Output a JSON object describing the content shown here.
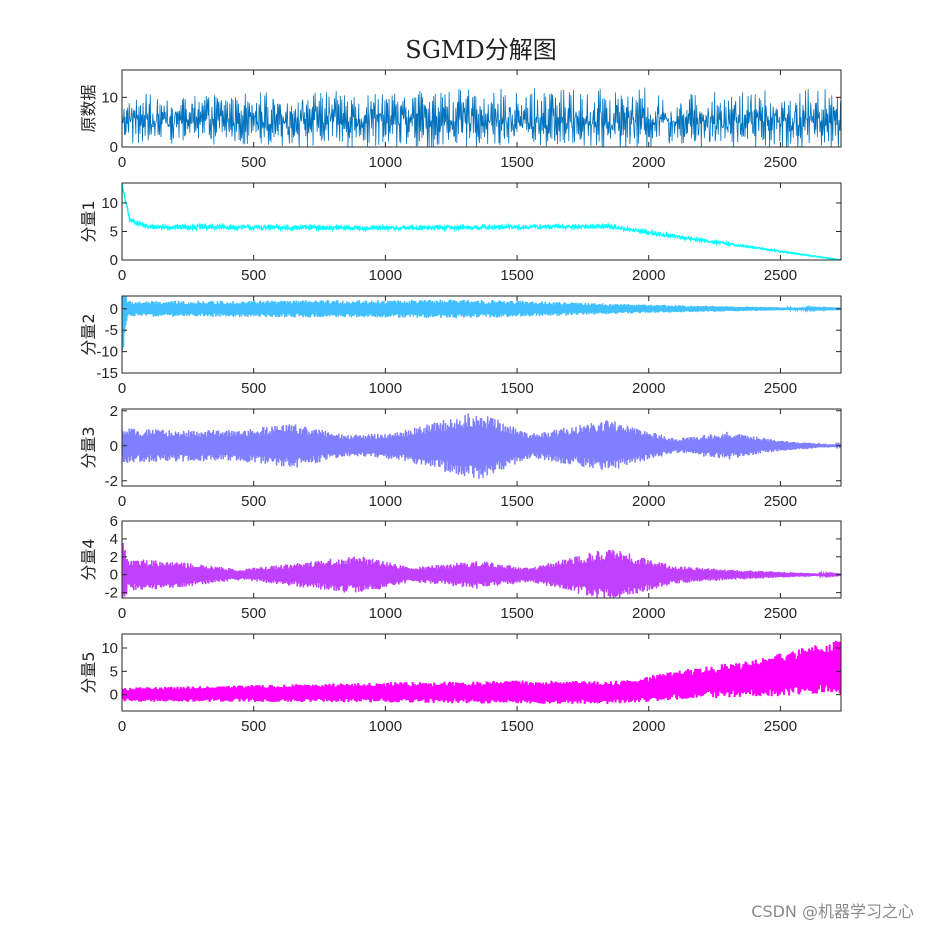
{
  "chart_data": {
    "type": "line",
    "title": "SGMD分解图",
    "xlim": [
      0,
      2730
    ],
    "xticks": [
      0,
      500,
      1000,
      1500,
      2000,
      2500
    ],
    "panels": [
      {
        "ylabel": "原数据",
        "color": "#0072BD",
        "ylim": [
          0,
          15.5
        ],
        "yticks": [
          0,
          10
        ],
        "line_width": 0.8,
        "shape": "oscillation",
        "center": [
          [
            0,
            5.5
          ],
          [
            2730,
            5.5
          ]
        ],
        "amplitude": [
          [
            0,
            4
          ],
          [
            1350,
            5
          ],
          [
            2730,
            5
          ]
        ]
      },
      {
        "ylabel": "分量1",
        "color": "#00FFFF",
        "ylim": [
          0,
          13.5
        ],
        "yticks": [
          0,
          5,
          10
        ],
        "line_width": 1.5,
        "shape": "trend",
        "center": [
          [
            0,
            13
          ],
          [
            30,
            7
          ],
          [
            100,
            5.8
          ],
          [
            1000,
            5.6
          ],
          [
            1850,
            5.9
          ],
          [
            2000,
            4.8
          ],
          [
            2730,
            0
          ]
        ],
        "amplitude": [
          [
            0,
            0.4
          ],
          [
            2000,
            0.3
          ],
          [
            2730,
            0.05
          ]
        ]
      },
      {
        "ylabel": "分量2",
        "color": "#40C0FF",
        "ylim": [
          -15,
          3
        ],
        "yticks": [
          -15,
          -10,
          -5,
          0
        ],
        "line_width": 1.5,
        "shape": "oscillation",
        "center": [
          [
            0,
            0
          ],
          [
            2730,
            0
          ]
        ],
        "amplitude": [
          [
            0,
            14
          ],
          [
            20,
            1.8
          ],
          [
            1350,
            2.2
          ],
          [
            2000,
            1
          ],
          [
            2730,
            0.1
          ]
        ]
      },
      {
        "ylabel": "分量3",
        "color": "#8080FF",
        "ylim": [
          -2.3,
          2.1
        ],
        "yticks": [
          -2,
          0,
          2
        ],
        "line_width": 1.5,
        "shape": "oscillation",
        "center": [
          [
            0,
            0
          ],
          [
            2730,
            0
          ]
        ],
        "amplitude": [
          [
            0,
            1
          ],
          [
            200,
            0.9
          ],
          [
            450,
            0.9
          ],
          [
            650,
            1.3
          ],
          [
            850,
            0.6
          ],
          [
            1050,
            0.8
          ],
          [
            1350,
            2
          ],
          [
            1550,
            0.7
          ],
          [
            1850,
            1.5
          ],
          [
            2100,
            0.4
          ],
          [
            2300,
            0.8
          ],
          [
            2500,
            0.3
          ],
          [
            2730,
            0.05
          ]
        ]
      },
      {
        "ylabel": "分量4",
        "color": "#BF40FF",
        "ylim": [
          -2.6,
          6
        ],
        "yticks": [
          -2,
          0,
          2,
          4,
          6
        ],
        "line_width": 1.5,
        "shape": "oscillation",
        "center": [
          [
            0,
            0
          ],
          [
            2730,
            0
          ]
        ],
        "amplitude": [
          [
            0,
            5
          ],
          [
            20,
            1.8
          ],
          [
            200,
            1.5
          ],
          [
            450,
            0.6
          ],
          [
            700,
            1.5
          ],
          [
            900,
            2.2
          ],
          [
            1100,
            0.8
          ],
          [
            1350,
            1.6
          ],
          [
            1550,
            0.8
          ],
          [
            1850,
            3
          ],
          [
            2100,
            1
          ],
          [
            2300,
            0.6
          ],
          [
            2730,
            0.05
          ]
        ]
      },
      {
        "ylabel": "分量5",
        "color": "#FF00FF",
        "ylim": [
          -3.5,
          13
        ],
        "yticks": [
          0,
          5,
          10
        ],
        "line_width": 2,
        "shape": "oscillation",
        "center": [
          [
            0,
            0
          ],
          [
            1000,
            0.5
          ],
          [
            1900,
            0.5
          ],
          [
            2100,
            2
          ],
          [
            2400,
            3.5
          ],
          [
            2730,
            6
          ]
        ],
        "amplitude": [
          [
            0,
            1.5
          ],
          [
            800,
            2
          ],
          [
            1500,
            2.5
          ],
          [
            1900,
            2.5
          ],
          [
            2400,
            4
          ],
          [
            2730,
            6
          ]
        ]
      }
    ]
  },
  "watermark": "CSDN @机器学习之心"
}
